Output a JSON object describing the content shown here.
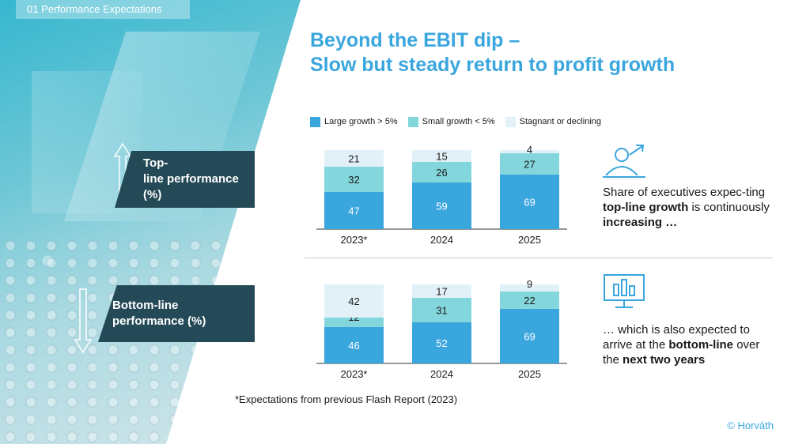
{
  "section_tag": "01 Performance Expectations",
  "title_line1": "Beyond the EBIT dip –",
  "title_line2": "Slow but steady return to profit growth",
  "panels": {
    "top": {
      "line1": "Top-",
      "line2": "line performance (%)"
    },
    "bottom": {
      "line1": "Bottom-line",
      "line2": "performance (%)"
    }
  },
  "captions": {
    "top": {
      "part1": "Share of executives expec-ting ",
      "bold1": "top-line growth",
      "part2": " is continuously ",
      "bold2": "increasing …"
    },
    "bottom": {
      "part1": "… which is also expected to arrive at the ",
      "bold1": "bottom-line",
      "part2": " over the ",
      "bold2": "next two years"
    }
  },
  "icons": {
    "top": "person-growth-arrow-icon",
    "bottom": "monitor-bar-chart-icon",
    "panel_arrow_top": "up-arrow-icon",
    "panel_arrow_bottom": "down-arrow-icon"
  },
  "footnote": "*Expectations from previous Flash Report (2023)",
  "copyright": "© Horváth",
  "colors": {
    "large": "#3aa6de",
    "small": "#83d7dc",
    "stagnant": "#e2f1f8",
    "accent": "#3aa6de",
    "panel": "#254a57"
  },
  "chart_data": [
    {
      "type": "bar",
      "stacked": true,
      "categories": [
        "2023*",
        "2024",
        "2025"
      ],
      "series": [
        {
          "name": "Large growth > 5%",
          "values": [
            47,
            59,
            69
          ]
        },
        {
          "name": "Small growth < 5%",
          "values": [
            32,
            26,
            27
          ]
        },
        {
          "name": "Stagnant or declining",
          "values": [
            21,
            15,
            4
          ]
        }
      ],
      "ylim": [
        0,
        100
      ],
      "legend": "top",
      "grid": false
    },
    {
      "type": "bar",
      "stacked": true,
      "categories": [
        "2023*",
        "2024",
        "2025"
      ],
      "series": [
        {
          "name": "Large growth > 5%",
          "values": [
            46,
            52,
            69
          ]
        },
        {
          "name": "Small growth < 5%",
          "values": [
            12,
            31,
            22
          ]
        },
        {
          "name": "Stagnant or declining",
          "values": [
            42,
            17,
            9
          ]
        }
      ],
      "ylim": [
        0,
        100
      ],
      "legend": "top",
      "grid": false
    }
  ]
}
